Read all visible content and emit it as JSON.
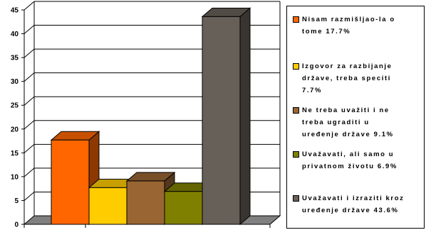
{
  "chart_data": {
    "type": "bar",
    "title": "",
    "xlabel": "",
    "ylabel": "",
    "ylim": [
      0,
      45
    ],
    "yticks": [
      0,
      5,
      10,
      15,
      20,
      25,
      30,
      35,
      40,
      45
    ],
    "grid": true,
    "legend_position": "right",
    "style": "3d",
    "categories": [
      "Nisam razmišljao-la o tome 17.7%",
      "Izgovor za razbijanje države, treba speciti 7.7%",
      "Ne treba uvažiti i ne treba ugraditi u uređenje države 9.1%",
      "Uvažavati, ali samo u privatnom životu 6.9%",
      "Uvažavati i izraziti kroz uređenje države 43.6%"
    ],
    "values": [
      17.7,
      7.7,
      9.1,
      6.9,
      43.6
    ],
    "colors": [
      "#ff6600",
      "#ffcc00",
      "#996633",
      "#808000",
      "#666058"
    ]
  },
  "legend": {
    "items": [
      {
        "label": "Nisam razmišljao-la o\ntome 17.7%",
        "color": "#ff6600"
      },
      {
        "label": "Izgovor za razbijanje\ndržave, treba speciti\n7.7%",
        "color": "#ffcc00"
      },
      {
        "label": "Ne treba uvažiti i ne\ntreba ugraditi u\nuređenje države  9.1%",
        "color": "#996633"
      },
      {
        "label": "Uvažavati, ali samo u\nprivatnom životu 6.9%",
        "color": "#808000"
      },
      {
        "label": "Uvažavati i izraziti kroz\nuređenje države 43.6%",
        "color": "#666058"
      }
    ]
  }
}
